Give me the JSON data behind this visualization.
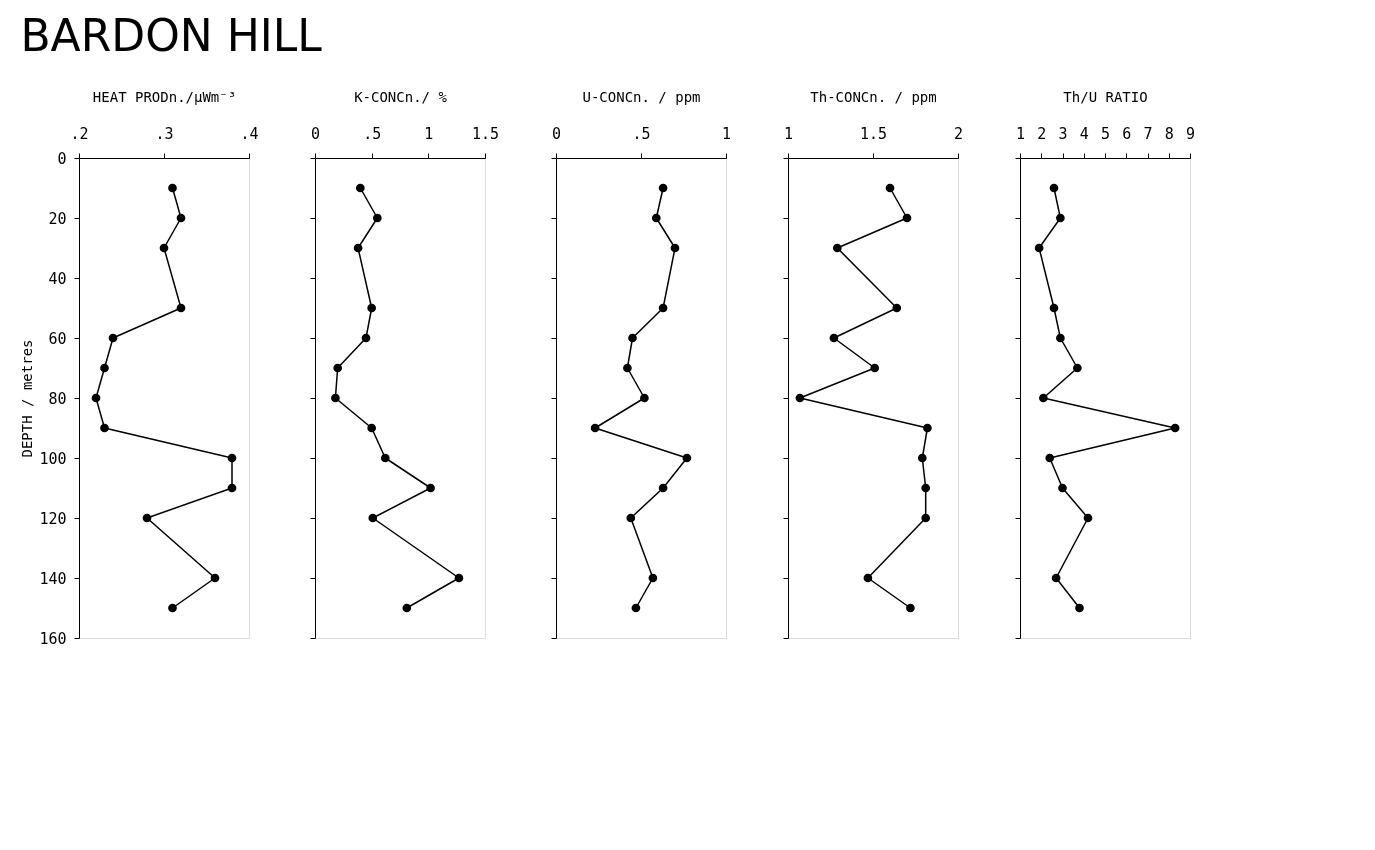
{
  "chart_data": [
    {
      "type": "line",
      "title": "BARDON HILL",
      "xlabel": "HEAT PRODn./µWm⁻³",
      "ylabel": "DEPTH / metres",
      "marker": "circle",
      "line_style": "solid",
      "grid": false,
      "legend": false,
      "x": [
        0.31,
        0.32,
        0.3,
        0.32,
        0.24,
        0.23,
        0.22,
        0.23,
        0.38,
        0.38,
        0.28,
        0.36,
        0.31
      ],
      "series": [
        {
          "color": "#000000",
          "values": [
            10,
            20,
            30,
            50,
            60,
            70,
            80,
            90,
            100,
            110,
            120,
            140,
            150
          ]
        }
      ],
      "xlim": [
        0.2,
        0.4
      ],
      "xticks": [
        {
          "value": 0.2,
          "label": ".2"
        },
        {
          "value": 0.3,
          "label": ".3"
        },
        {
          "value": 0.4,
          "label": ".4"
        }
      ],
      "ylim": [
        160,
        0
      ],
      "yticks": [
        0,
        20,
        40,
        60,
        80,
        100,
        120,
        140,
        160
      ]
    },
    {
      "type": "line",
      "xlabel": "K-CONCn./ %",
      "marker": "circle",
      "line_style": "solid",
      "grid": false,
      "legend": false,
      "tick_labels": "x",
      "x": [
        0.4,
        0.55,
        0.38,
        0.5,
        0.45,
        0.2,
        0.18,
        0.5,
        0.62,
        1.02,
        0.51,
        1.27,
        0.81
      ],
      "series": [
        {
          "color": "#000000",
          "values": [
            10,
            20,
            30,
            50,
            60,
            70,
            80,
            90,
            100,
            110,
            120,
            140,
            150
          ]
        }
      ],
      "xlim": [
        0,
        1.5
      ],
      "xticks": [
        0,
        {
          "value": 0.5,
          "label": ".5"
        },
        1,
        1.5
      ],
      "ylim": [
        160,
        0
      ],
      "yticks": [
        {
          "value": 0,
          "label": null
        },
        {
          "value": 20,
          "label": null
        },
        {
          "value": 40,
          "label": null
        },
        {
          "value": 60,
          "label": null
        },
        {
          "value": 80,
          "label": null
        },
        {
          "value": 100,
          "label": null
        },
        {
          "value": 120,
          "label": null
        },
        {
          "value": 140,
          "label": null
        },
        {
          "value": 160,
          "label": null
        }
      ]
    },
    {
      "type": "line",
      "xlabel": "U-CONCn. / ppm",
      "marker": "circle",
      "line_style": "solid",
      "grid": false,
      "legend": false,
      "tick_labels": "x",
      "x": [
        0.63,
        0.59,
        0.7,
        0.63,
        0.45,
        0.42,
        0.52,
        0.23,
        0.77,
        0.63,
        0.44,
        0.57,
        0.47
      ],
      "series": [
        {
          "color": "#000000",
          "values": [
            10,
            20,
            30,
            50,
            60,
            70,
            80,
            90,
            100,
            110,
            120,
            140,
            150
          ]
        }
      ],
      "xlim": [
        0,
        1
      ],
      "xticks": [
        0,
        {
          "value": 0.5,
          "label": ".5"
        },
        1
      ],
      "ylim": [
        160,
        0
      ],
      "yticks": [
        {
          "value": 0,
          "label": null
        },
        {
          "value": 20,
          "label": null
        },
        {
          "value": 40,
          "label": null
        },
        {
          "value": 60,
          "label": null
        },
        {
          "value": 80,
          "label": null
        },
        {
          "value": 100,
          "label": null
        },
        {
          "value": 120,
          "label": null
        },
        {
          "value": 140,
          "label": null
        },
        {
          "value": 160,
          "label": null
        }
      ]
    },
    {
      "type": "line",
      "xlabel": "Th-CONCn. / ppm",
      "marker": "circle",
      "line_style": "solid",
      "grid": false,
      "legend": false,
      "tick_labels": "x",
      "x": [
        1.6,
        1.7,
        1.29,
        1.64,
        1.27,
        1.51,
        1.07,
        1.82,
        1.79,
        1.81,
        1.81,
        1.47,
        1.72
      ],
      "series": [
        {
          "color": "#000000",
          "values": [
            10,
            20,
            30,
            50,
            60,
            70,
            80,
            90,
            100,
            110,
            120,
            140,
            150
          ]
        }
      ],
      "xlim": [
        1,
        2
      ],
      "xticks": [
        1,
        1.5,
        2
      ],
      "ylim": [
        160,
        0
      ],
      "yticks": [
        {
          "value": 0,
          "label": null
        },
        {
          "value": 20,
          "label": null
        },
        {
          "value": 40,
          "label": null
        },
        {
          "value": 60,
          "label": null
        },
        {
          "value": 80,
          "label": null
        },
        {
          "value": 100,
          "label": null
        },
        {
          "value": 120,
          "label": null
        },
        {
          "value": 140,
          "label": null
        },
        {
          "value": 160,
          "label": null
        }
      ]
    },
    {
      "type": "line",
      "xlabel": "Th/U RATIO",
      "marker": "circle",
      "line_style": "solid",
      "grid": false,
      "legend": false,
      "tick_labels": "x",
      "x": [
        2.6,
        2.9,
        1.9,
        2.6,
        2.9,
        3.7,
        2.1,
        8.3,
        2.4,
        3.0,
        4.2,
        2.7,
        3.8
      ],
      "series": [
        {
          "color": "#000000",
          "values": [
            10,
            20,
            30,
            50,
            60,
            70,
            80,
            90,
            100,
            110,
            120,
            140,
            150
          ]
        }
      ],
      "xlim": [
        1,
        9
      ],
      "xticks": [
        1,
        2,
        3,
        4,
        5,
        6,
        7,
        8,
        9
      ],
      "ylim": [
        160,
        0
      ],
      "yticks": [
        {
          "value": 0,
          "label": null
        },
        {
          "value": 20,
          "label": null
        },
        {
          "value": 40,
          "label": null
        },
        {
          "value": 60,
          "label": null
        },
        {
          "value": 80,
          "label": null
        },
        {
          "value": 100,
          "label": null
        },
        {
          "value": 120,
          "label": null
        },
        {
          "value": 140,
          "label": null
        },
        {
          "value": 160,
          "label": null
        }
      ]
    }
  ]
}
